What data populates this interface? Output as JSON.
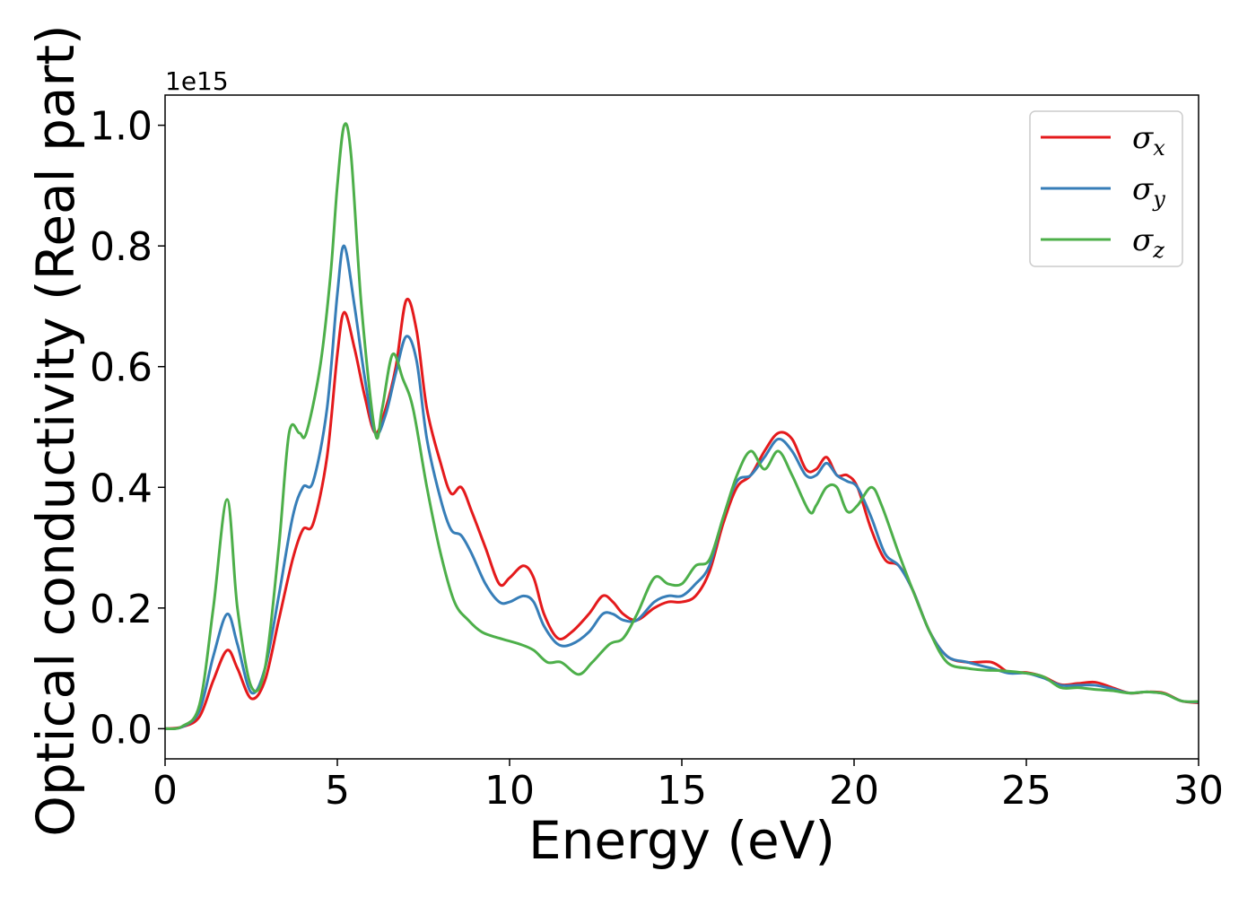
{
  "chart_data": {
    "type": "line",
    "xlabel": "Energy (eV)",
    "ylabel": "Optical conductivity (Real part)",
    "offset_text": "1e15",
    "xlim": [
      0,
      30
    ],
    "ylim": [
      -0.05,
      1.05
    ],
    "xticks": [
      0,
      5,
      10,
      15,
      20,
      25,
      30
    ],
    "yticks": [
      0.0,
      0.2,
      0.4,
      0.6,
      0.8,
      1.0
    ],
    "ytick_labels": [
      "0.0",
      "0.2",
      "0.4",
      "0.6",
      "0.8",
      "1.0"
    ],
    "legend_position": "top-right",
    "series": [
      {
        "name": "σx",
        "sym": "σ",
        "sub": "x",
        "color": "#e41a1c",
        "points": [
          [
            0,
            0
          ],
          [
            0.5,
            0.003
          ],
          [
            1.0,
            0.02
          ],
          [
            1.4,
            0.08
          ],
          [
            1.8,
            0.13
          ],
          [
            2.1,
            0.1
          ],
          [
            2.5,
            0.05
          ],
          [
            2.9,
            0.08
          ],
          [
            3.3,
            0.18
          ],
          [
            3.7,
            0.28
          ],
          [
            4.0,
            0.33
          ],
          [
            4.3,
            0.34
          ],
          [
            4.7,
            0.45
          ],
          [
            5.0,
            0.62
          ],
          [
            5.2,
            0.69
          ],
          [
            5.5,
            0.63
          ],
          [
            5.8,
            0.55
          ],
          [
            6.1,
            0.49
          ],
          [
            6.4,
            0.53
          ],
          [
            6.7,
            0.6
          ],
          [
            7.0,
            0.71
          ],
          [
            7.3,
            0.66
          ],
          [
            7.6,
            0.53
          ],
          [
            8.0,
            0.44
          ],
          [
            8.3,
            0.39
          ],
          [
            8.6,
            0.4
          ],
          [
            8.9,
            0.36
          ],
          [
            9.3,
            0.3
          ],
          [
            9.7,
            0.24
          ],
          [
            10.0,
            0.25
          ],
          [
            10.4,
            0.27
          ],
          [
            10.7,
            0.25
          ],
          [
            11.0,
            0.19
          ],
          [
            11.4,
            0.15
          ],
          [
            11.8,
            0.16
          ],
          [
            12.3,
            0.19
          ],
          [
            12.7,
            0.22
          ],
          [
            13.0,
            0.21
          ],
          [
            13.3,
            0.19
          ],
          [
            13.7,
            0.18
          ],
          [
            14.2,
            0.2
          ],
          [
            14.6,
            0.21
          ],
          [
            15.0,
            0.21
          ],
          [
            15.4,
            0.22
          ],
          [
            15.8,
            0.26
          ],
          [
            16.2,
            0.34
          ],
          [
            16.6,
            0.4
          ],
          [
            17.0,
            0.42
          ],
          [
            17.4,
            0.46
          ],
          [
            17.8,
            0.49
          ],
          [
            18.2,
            0.48
          ],
          [
            18.6,
            0.43
          ],
          [
            18.9,
            0.43
          ],
          [
            19.2,
            0.45
          ],
          [
            19.5,
            0.42
          ],
          [
            19.8,
            0.42
          ],
          [
            20.1,
            0.4
          ],
          [
            20.5,
            0.33
          ],
          [
            20.9,
            0.28
          ],
          [
            21.3,
            0.27
          ],
          [
            21.7,
            0.23
          ],
          [
            22.2,
            0.16
          ],
          [
            22.7,
            0.12
          ],
          [
            23.3,
            0.11
          ],
          [
            24.0,
            0.11
          ],
          [
            24.5,
            0.093
          ],
          [
            25.0,
            0.093
          ],
          [
            25.5,
            0.086
          ],
          [
            26.0,
            0.073
          ],
          [
            26.5,
            0.075
          ],
          [
            27.0,
            0.077
          ],
          [
            27.5,
            0.068
          ],
          [
            28.0,
            0.059
          ],
          [
            28.5,
            0.061
          ],
          [
            29.0,
            0.059
          ],
          [
            29.5,
            0.046
          ],
          [
            30.0,
            0.043
          ]
        ]
      },
      {
        "name": "σy",
        "sym": "σ",
        "sub": "y",
        "color": "#377eb8",
        "points": [
          [
            0,
            0
          ],
          [
            0.5,
            0.003
          ],
          [
            1.0,
            0.03
          ],
          [
            1.4,
            0.12
          ],
          [
            1.8,
            0.19
          ],
          [
            2.1,
            0.14
          ],
          [
            2.5,
            0.06
          ],
          [
            2.9,
            0.1
          ],
          [
            3.3,
            0.22
          ],
          [
            3.7,
            0.35
          ],
          [
            4.0,
            0.4
          ],
          [
            4.3,
            0.41
          ],
          [
            4.7,
            0.53
          ],
          [
            5.0,
            0.72
          ],
          [
            5.2,
            0.8
          ],
          [
            5.5,
            0.7
          ],
          [
            5.8,
            0.58
          ],
          [
            6.1,
            0.49
          ],
          [
            6.4,
            0.52
          ],
          [
            6.7,
            0.59
          ],
          [
            7.0,
            0.65
          ],
          [
            7.3,
            0.61
          ],
          [
            7.6,
            0.48
          ],
          [
            8.0,
            0.38
          ],
          [
            8.3,
            0.33
          ],
          [
            8.6,
            0.32
          ],
          [
            8.9,
            0.29
          ],
          [
            9.3,
            0.24
          ],
          [
            9.7,
            0.21
          ],
          [
            10.0,
            0.21
          ],
          [
            10.4,
            0.22
          ],
          [
            10.7,
            0.21
          ],
          [
            11.0,
            0.17
          ],
          [
            11.4,
            0.14
          ],
          [
            11.8,
            0.14
          ],
          [
            12.3,
            0.16
          ],
          [
            12.7,
            0.19
          ],
          [
            13.0,
            0.19
          ],
          [
            13.3,
            0.18
          ],
          [
            13.7,
            0.18
          ],
          [
            14.2,
            0.21
          ],
          [
            14.6,
            0.22
          ],
          [
            15.0,
            0.22
          ],
          [
            15.4,
            0.24
          ],
          [
            15.8,
            0.27
          ],
          [
            16.2,
            0.35
          ],
          [
            16.6,
            0.41
          ],
          [
            17.0,
            0.42
          ],
          [
            17.4,
            0.45
          ],
          [
            17.8,
            0.48
          ],
          [
            18.2,
            0.46
          ],
          [
            18.6,
            0.42
          ],
          [
            18.9,
            0.42
          ],
          [
            19.2,
            0.44
          ],
          [
            19.5,
            0.42
          ],
          [
            19.8,
            0.41
          ],
          [
            20.1,
            0.4
          ],
          [
            20.5,
            0.35
          ],
          [
            20.9,
            0.29
          ],
          [
            21.3,
            0.27
          ],
          [
            21.7,
            0.23
          ],
          [
            22.2,
            0.16
          ],
          [
            22.7,
            0.12
          ],
          [
            23.3,
            0.11
          ],
          [
            24.0,
            0.1
          ],
          [
            24.5,
            0.092
          ],
          [
            25.0,
            0.092
          ],
          [
            25.5,
            0.084
          ],
          [
            26.0,
            0.072
          ],
          [
            26.5,
            0.072
          ],
          [
            27.0,
            0.072
          ],
          [
            27.5,
            0.066
          ],
          [
            28.0,
            0.059
          ],
          [
            28.5,
            0.061
          ],
          [
            29.0,
            0.058
          ],
          [
            29.5,
            0.046
          ],
          [
            30.0,
            0.044
          ]
        ]
      },
      {
        "name": "σz",
        "sym": "σ",
        "sub": "z",
        "color": "#4daf4a",
        "points": [
          [
            0,
            0
          ],
          [
            0.5,
            0.004
          ],
          [
            1.0,
            0.04
          ],
          [
            1.4,
            0.2
          ],
          [
            1.8,
            0.38
          ],
          [
            2.1,
            0.2
          ],
          [
            2.5,
            0.07
          ],
          [
            2.9,
            0.1
          ],
          [
            3.3,
            0.3
          ],
          [
            3.6,
            0.49
          ],
          [
            3.9,
            0.49
          ],
          [
            4.1,
            0.49
          ],
          [
            4.5,
            0.6
          ],
          [
            4.8,
            0.75
          ],
          [
            5.0,
            0.9
          ],
          [
            5.2,
            1.0
          ],
          [
            5.4,
            0.95
          ],
          [
            5.7,
            0.7
          ],
          [
            6.1,
            0.49
          ],
          [
            6.3,
            0.53
          ],
          [
            6.6,
            0.62
          ],
          [
            6.9,
            0.58
          ],
          [
            7.2,
            0.53
          ],
          [
            7.6,
            0.4
          ],
          [
            8.0,
            0.29
          ],
          [
            8.4,
            0.21
          ],
          [
            8.8,
            0.18
          ],
          [
            9.2,
            0.16
          ],
          [
            9.7,
            0.15
          ],
          [
            10.3,
            0.14
          ],
          [
            10.7,
            0.13
          ],
          [
            11.1,
            0.11
          ],
          [
            11.5,
            0.11
          ],
          [
            12.0,
            0.09
          ],
          [
            12.4,
            0.11
          ],
          [
            12.9,
            0.14
          ],
          [
            13.3,
            0.15
          ],
          [
            13.7,
            0.19
          ],
          [
            14.2,
            0.25
          ],
          [
            14.6,
            0.24
          ],
          [
            15.0,
            0.24
          ],
          [
            15.4,
            0.27
          ],
          [
            15.8,
            0.28
          ],
          [
            16.2,
            0.35
          ],
          [
            16.6,
            0.42
          ],
          [
            17.0,
            0.46
          ],
          [
            17.4,
            0.43
          ],
          [
            17.8,
            0.46
          ],
          [
            18.2,
            0.42
          ],
          [
            18.7,
            0.36
          ],
          [
            18.9,
            0.37
          ],
          [
            19.2,
            0.4
          ],
          [
            19.5,
            0.4
          ],
          [
            19.8,
            0.36
          ],
          [
            20.1,
            0.37
          ],
          [
            20.5,
            0.4
          ],
          [
            20.8,
            0.37
          ],
          [
            21.3,
            0.29
          ],
          [
            21.7,
            0.23
          ],
          [
            22.2,
            0.16
          ],
          [
            22.7,
            0.11
          ],
          [
            23.3,
            0.1
          ],
          [
            23.8,
            0.097
          ],
          [
            24.3,
            0.096
          ],
          [
            25.0,
            0.092
          ],
          [
            25.5,
            0.086
          ],
          [
            26.0,
            0.068
          ],
          [
            26.5,
            0.068
          ],
          [
            27.0,
            0.065
          ],
          [
            27.5,
            0.063
          ],
          [
            28.0,
            0.059
          ],
          [
            28.5,
            0.061
          ],
          [
            29.0,
            0.058
          ],
          [
            29.5,
            0.046
          ],
          [
            30.0,
            0.045
          ]
        ]
      }
    ]
  }
}
